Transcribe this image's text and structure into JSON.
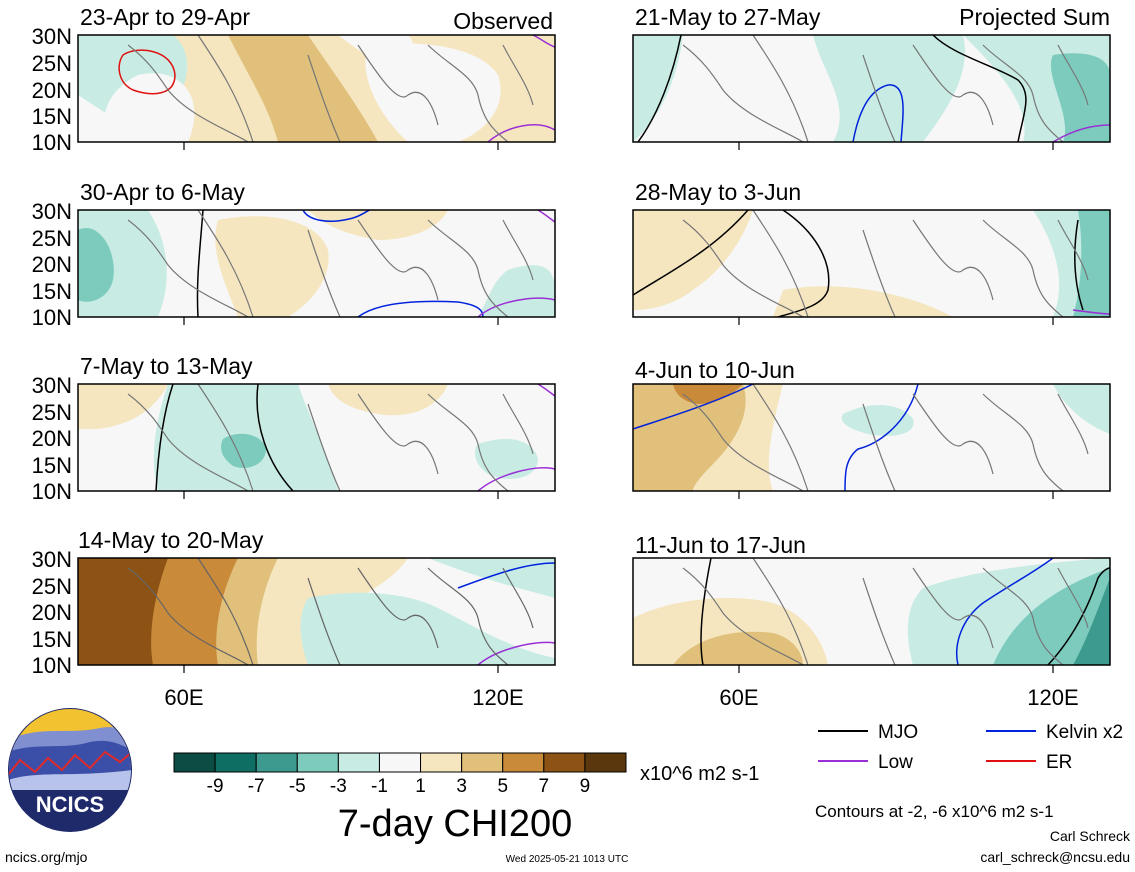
{
  "panels_left": {
    "header_right": "Observed",
    "items": [
      {
        "title": "23-Apr to 29-Apr"
      },
      {
        "title": "30-Apr to 6-May"
      },
      {
        "title": "7-May to 13-May"
      },
      {
        "title": "14-May to 20-May"
      }
    ]
  },
  "panels_right": {
    "header_right": "Projected Sum",
    "items": [
      {
        "title": "21-May to 27-May"
      },
      {
        "title": "28-May to 3-Jun"
      },
      {
        "title": "4-Jun to 10-Jun"
      },
      {
        "title": "11-Jun to 17-Jun"
      }
    ]
  },
  "axes": {
    "lat_labels": [
      "30N",
      "25N",
      "20N",
      "15N",
      "10N"
    ],
    "lon_labels": [
      "60E",
      "120E"
    ]
  },
  "colorbar": {
    "tick_labels": [
      "-9",
      "-7",
      "-5",
      "-3",
      "-1",
      "1",
      "3",
      "5",
      "7",
      "9"
    ],
    "colors": [
      "#0b4d44",
      "#0e6e63",
      "#3d9a8e",
      "#7ccbbd",
      "#c8ece4",
      "#f7f7f7",
      "#f5e6c0",
      "#e0c07a",
      "#c98a3a",
      "#8c5314",
      "#5a370c"
    ],
    "units": "x10^6 m2 s-1",
    "title": "7-day CHI200"
  },
  "legend": {
    "items": [
      {
        "label": "MJO",
        "color": "#000000"
      },
      {
        "label": "Kelvin x2",
        "color": "#0022dd"
      },
      {
        "label": "Low",
        "color": "#9a2fd6"
      },
      {
        "label": "ER",
        "color": "#e01010"
      }
    ],
    "contours_note": "Contours at -2, -6 x10^6 m2 s-1"
  },
  "logo": {
    "text": "NCICS"
  },
  "footer": {
    "url": "ncics.org/mjo",
    "timestamp": "Wed 2025-05-21 1013 UTC",
    "author": "Carl Schreck",
    "email": "carl_schreck@ncsu.edu"
  }
}
